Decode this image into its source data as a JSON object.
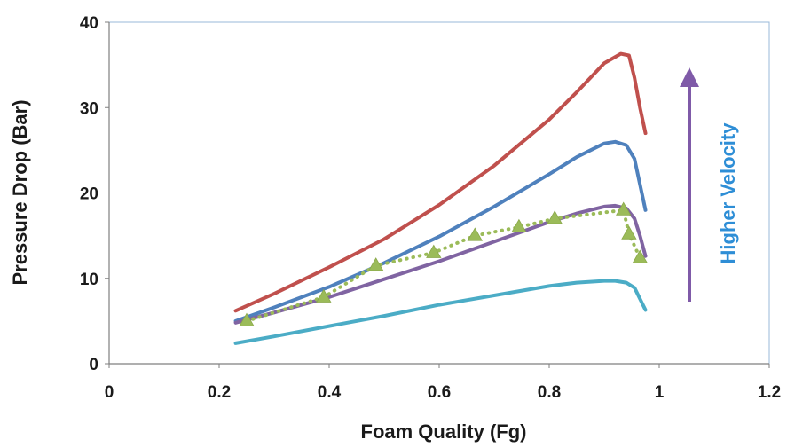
{
  "chart_data": {
    "type": "line",
    "title": "",
    "xlabel": "Foam Quality (Fg)",
    "ylabel": "Pressure Drop (Bar)",
    "xlim": [
      0,
      1.2
    ],
    "ylim": [
      0,
      40
    ],
    "xticks": [
      "0",
      "0.2",
      "0.4",
      "0.6",
      "0.8",
      "1",
      "1.2"
    ],
    "yticks": [
      "0",
      "10",
      "20",
      "30",
      "40"
    ],
    "grid": false,
    "legend": "none",
    "annotation": {
      "text": "Higher Velocity",
      "color": "#2e8ed6",
      "arrow_color": "#7f5aa8"
    },
    "series": [
      {
        "color": "#c0504d",
        "style": "solid",
        "x": [
          0.23,
          0.3,
          0.4,
          0.5,
          0.6,
          0.7,
          0.8,
          0.85,
          0.9,
          0.93,
          0.945,
          0.955,
          0.965,
          0.975
        ],
        "y": [
          6.2,
          8.2,
          11.3,
          14.6,
          18.6,
          23.2,
          28.6,
          31.8,
          35.2,
          36.3,
          36.1,
          33.5,
          30.0,
          27.0
        ]
      },
      {
        "color": "#4f81bd",
        "style": "solid",
        "x": [
          0.23,
          0.3,
          0.4,
          0.5,
          0.6,
          0.7,
          0.8,
          0.85,
          0.9,
          0.92,
          0.94,
          0.955,
          0.965,
          0.975
        ],
        "y": [
          5.0,
          6.6,
          9.0,
          11.8,
          14.9,
          18.4,
          22.2,
          24.2,
          25.8,
          26.0,
          25.6,
          24.0,
          21.0,
          18.0
        ]
      },
      {
        "color": "#8064a2",
        "style": "solid",
        "x": [
          0.23,
          0.3,
          0.4,
          0.5,
          0.6,
          0.7,
          0.8,
          0.85,
          0.9,
          0.92,
          0.94,
          0.955,
          0.965,
          0.975
        ],
        "y": [
          4.8,
          6.0,
          7.8,
          9.9,
          12.0,
          14.3,
          16.6,
          17.6,
          18.4,
          18.5,
          18.2,
          17.0,
          15.0,
          12.6
        ]
      },
      {
        "color": "#4bacc6",
        "style": "solid",
        "x": [
          0.23,
          0.3,
          0.4,
          0.5,
          0.6,
          0.7,
          0.8,
          0.85,
          0.9,
          0.92,
          0.94,
          0.955,
          0.965,
          0.975
        ],
        "y": [
          2.4,
          3.2,
          4.4,
          5.6,
          6.9,
          8.0,
          9.1,
          9.5,
          9.7,
          9.7,
          9.5,
          8.9,
          7.6,
          6.3
        ]
      },
      {
        "color": "#9bbb59",
        "style": "dotted",
        "marker": "triangle",
        "x": [
          0.25,
          0.39,
          0.485,
          0.59,
          0.665,
          0.745,
          0.81,
          0.935,
          0.945,
          0.965
        ],
        "y": [
          5.0,
          7.8,
          11.5,
          13.0,
          15.0,
          16.0,
          17.0,
          18.0,
          15.2,
          12.4
        ]
      }
    ]
  }
}
